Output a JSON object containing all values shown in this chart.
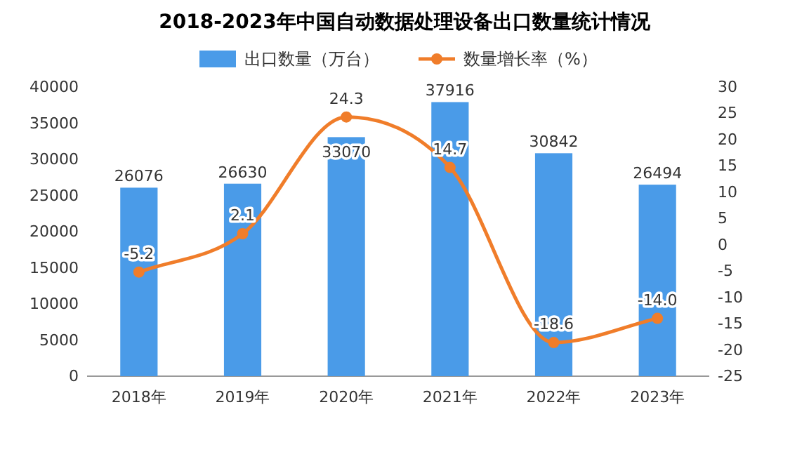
{
  "chart_data": {
    "type": "bar",
    "title": "2018-2023年中国自动数据处理设备出口数量统计情况",
    "categories": [
      "2018年",
      "2019年",
      "2020年",
      "2021年",
      "2022年",
      "2023年"
    ],
    "series": [
      {
        "name": "出口数量（万台）",
        "type": "bar",
        "color": "#4a9be8",
        "values": [
          26076,
          26630,
          33070,
          37916,
          30842,
          26494
        ]
      },
      {
        "name": "数量增长率（%）",
        "type": "line",
        "axis": "y2",
        "color": "#f07d2a",
        "marker": "circle",
        "values": [
          -5.2,
          2.1,
          24.3,
          14.7,
          -18.6,
          -14.0
        ],
        "value_labels": [
          "-5.2",
          "2.1",
          "24.3",
          "14.7",
          "-18.6",
          "-14.0"
        ]
      }
    ],
    "ylim": [
      0,
      40000
    ],
    "yticks": [
      0,
      5000,
      10000,
      15000,
      20000,
      25000,
      30000,
      35000,
      40000
    ],
    "y2lim": [
      -25,
      30
    ],
    "y2ticks": [
      -25,
      -20,
      -15,
      -10,
      -5,
      0,
      5,
      10,
      15,
      20,
      25,
      30
    ],
    "data_labels": true,
    "legend": "top"
  }
}
